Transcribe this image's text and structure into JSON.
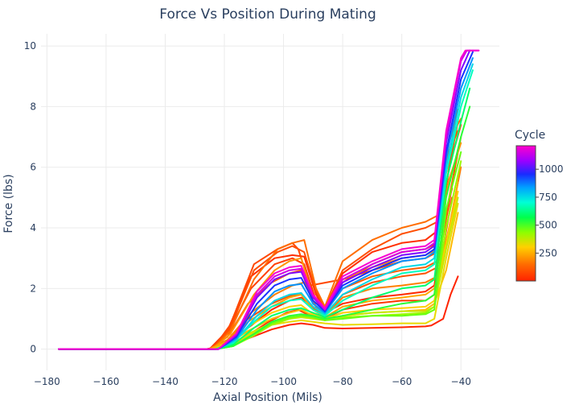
{
  "chart_data": {
    "type": "line",
    "title": "Force Vs Position During Mating",
    "xlabel": "Axial Position (Mils)",
    "ylabel": "Force (lbs)",
    "xlim": [
      -182,
      -27
    ],
    "ylim": [
      -0.7,
      10.4
    ],
    "xticks": [
      -180,
      -160,
      -140,
      -120,
      -100,
      -80,
      -60,
      -40
    ],
    "xtick_labels": [
      "−180",
      "−160",
      "−140",
      "−120",
      "−100",
      "−80",
      "−60",
      "−40"
    ],
    "yticks": [
      0,
      2,
      4,
      6,
      8,
      10
    ],
    "ytick_labels": [
      "0",
      "2",
      "4",
      "6",
      "8",
      "10"
    ],
    "grid": true,
    "legend": {
      "title": "Cycle",
      "placement": "right",
      "ticks": [
        250,
        500,
        750,
        1000
      ],
      "range": [
        1,
        1210
      ],
      "colorscale": [
        [
          0.0,
          "#ff2200"
        ],
        [
          0.12,
          "#ff6a00"
        ],
        [
          0.25,
          "#ffd000"
        ],
        [
          0.36,
          "#8cff00"
        ],
        [
          0.47,
          "#00ff4c"
        ],
        [
          0.58,
          "#00ffd5"
        ],
        [
          0.69,
          "#00a2ff"
        ],
        [
          0.79,
          "#1a2bff"
        ],
        [
          0.89,
          "#9d00ff"
        ],
        [
          1.0,
          "#ff00cc"
        ]
      ]
    },
    "series": [
      {
        "cycle": 5,
        "x": [
          -176,
          -126,
          -120,
          -112,
          -104,
          -98,
          -94,
          -90,
          -86,
          -80,
          -70,
          -60,
          -52,
          -50,
          -46,
          -43.5,
          -41
        ],
        "y": [
          0,
          0,
          0.1,
          0.35,
          0.65,
          0.8,
          0.85,
          0.8,
          0.7,
          0.68,
          0.7,
          0.72,
          0.75,
          0.78,
          1.0,
          1.8,
          2.4
        ]
      },
      {
        "cycle": 30,
        "x": [
          -176,
          -125,
          -119,
          -111,
          -103,
          -97,
          -93,
          -89,
          -86,
          -80,
          -70,
          -60,
          -52,
          -48,
          -44,
          -41
        ],
        "y": [
          0,
          0,
          0.6,
          2.4,
          3.0,
          3.1,
          3.05,
          1.8,
          1.3,
          2.5,
          3.2,
          3.5,
          3.6,
          3.9,
          6.8,
          7.9
        ]
      },
      {
        "cycle": 60,
        "x": [
          -176,
          -125,
          -119,
          -111,
          -103,
          -97,
          -93,
          -89,
          -86,
          -80,
          -70,
          -60,
          -52,
          -48,
          -44,
          -41
        ],
        "y": [
          0,
          0,
          0.5,
          2.0,
          2.8,
          3.0,
          2.8,
          1.6,
          1.25,
          2.2,
          2.8,
          3.2,
          3.3,
          3.5,
          6.0,
          7.5
        ]
      },
      {
        "cycle": 90,
        "x": [
          -176,
          -124,
          -118,
          -110,
          -102,
          -97,
          -93,
          -89,
          -86,
          -80,
          -70,
          -60,
          -52,
          -48,
          -44,
          -41
        ],
        "y": [
          0,
          0,
          0.7,
          2.6,
          3.2,
          3.4,
          3.2,
          1.9,
          1.35,
          2.6,
          3.3,
          3.8,
          4.0,
          4.2,
          6.5,
          7.2
        ]
      },
      {
        "cycle": 120,
        "x": [
          -176,
          -125,
          -119,
          -112,
          -104,
          -98,
          -94,
          -90,
          -86,
          -80,
          -70,
          -60,
          -52,
          -48,
          -44,
          -40
        ],
        "y": [
          0,
          0,
          0.4,
          1.5,
          2.2,
          2.5,
          2.6,
          1.5,
          1.2,
          2.0,
          2.4,
          2.6,
          2.7,
          2.9,
          5.0,
          7.0
        ]
      },
      {
        "cycle": 150,
        "x": [
          -176,
          -124,
          -118,
          -110,
          -102,
          -97,
          -93,
          -89,
          -86,
          -80,
          -70,
          -60,
          -52,
          -48,
          -44,
          -40
        ],
        "y": [
          0,
          0,
          0.6,
          2.3,
          3.3,
          3.5,
          3.6,
          2.0,
          1.4,
          2.9,
          3.6,
          4.0,
          4.2,
          4.4,
          6.9,
          7.6
        ]
      },
      {
        "cycle": 180,
        "x": [
          -176,
          -125,
          -119,
          -111,
          -103,
          -97,
          -93,
          -89,
          -86,
          -80,
          -70,
          -60,
          -52,
          -48,
          -44,
          -40
        ],
        "y": [
          0,
          0,
          0.3,
          1.2,
          1.8,
          2.1,
          2.2,
          1.4,
          1.1,
          1.7,
          2.0,
          2.1,
          2.2,
          2.4,
          4.0,
          6.0
        ]
      },
      {
        "cycle": 210,
        "x": [
          -176,
          -124,
          -118,
          -110,
          -103,
          -98,
          -94,
          -90,
          -86,
          -80,
          -70,
          -60,
          -52,
          -48,
          -44,
          -40
        ],
        "y": [
          0,
          0,
          0.5,
          1.8,
          2.6,
          2.9,
          3.0,
          1.7,
          1.3,
          2.3,
          2.7,
          3.0,
          3.1,
          3.3,
          5.6,
          6.8
        ]
      },
      {
        "cycle": 240,
        "x": [
          -176,
          -125,
          -119,
          -112,
          -104,
          -98,
          -94,
          -90,
          -86,
          -80,
          -70,
          -60,
          -52,
          -49,
          -45,
          -41
        ],
        "y": [
          0,
          0,
          0.25,
          0.9,
          1.4,
          1.7,
          1.8,
          1.3,
          1.05,
          1.4,
          1.6,
          1.7,
          1.8,
          2.0,
          3.5,
          5.5
        ]
      },
      {
        "cycle": 270,
        "x": [
          -176,
          -125,
          -119,
          -112,
          -104,
          -98,
          -94,
          -90,
          -86,
          -80,
          -70,
          -60,
          -52,
          -49,
          -45,
          -41
        ],
        "y": [
          0,
          0,
          0.15,
          0.6,
          1.0,
          1.2,
          1.3,
          1.1,
          0.95,
          1.1,
          1.2,
          1.25,
          1.3,
          1.5,
          2.6,
          4.5
        ]
      },
      {
        "cycle": 300,
        "x": [
          -176,
          -124,
          -118,
          -111,
          -104,
          -98,
          -94,
          -90,
          -86,
          -80,
          -70,
          -60,
          -52,
          -49,
          -45,
          -41
        ],
        "y": [
          0,
          0,
          0.2,
          0.8,
          1.2,
          1.4,
          1.45,
          1.15,
          1.0,
          1.2,
          1.3,
          1.35,
          1.4,
          1.6,
          3.5,
          5.2
        ]
      },
      {
        "cycle": 330,
        "x": [
          -176,
          -124,
          -118,
          -111,
          -104,
          -98,
          -94,
          -90,
          -86,
          -80,
          -70,
          -60,
          -52,
          -49,
          -45,
          -41
        ],
        "y": [
          0,
          0,
          0.1,
          0.5,
          0.8,
          0.9,
          0.95,
          0.9,
          0.85,
          0.8,
          0.82,
          0.85,
          0.85,
          1.0,
          3.0,
          4.8
        ]
      },
      {
        "cycle": 370,
        "x": [
          -176,
          -124,
          -118,
          -111,
          -104,
          -98,
          -94,
          -90,
          -86,
          -80,
          -70,
          -60,
          -52,
          -49,
          -45,
          -41
        ],
        "y": [
          0,
          0,
          0.15,
          0.55,
          0.85,
          1.0,
          1.05,
          1.0,
          0.95,
          1.1,
          1.2,
          1.25,
          1.25,
          1.4,
          3.3,
          5.0
        ]
      },
      {
        "cycle": 420,
        "x": [
          -176,
          -123,
          -117,
          -110,
          -104,
          -98,
          -94,
          -90,
          -86,
          -80,
          -70,
          -60,
          -52,
          -49,
          -45,
          -40
        ],
        "y": [
          0,
          0,
          0.1,
          0.45,
          0.8,
          1.0,
          1.1,
          1.05,
          1.0,
          1.05,
          1.1,
          1.15,
          1.2,
          1.4,
          4.0,
          6.2
        ]
      },
      {
        "cycle": 470,
        "x": [
          -176,
          -123,
          -117,
          -110,
          -104,
          -98,
          -94,
          -90,
          -86,
          -80,
          -70,
          -60,
          -52,
          -49,
          -45,
          -40
        ],
        "y": [
          0,
          0,
          0.1,
          0.5,
          0.85,
          1.05,
          1.1,
          1.05,
          0.95,
          1.0,
          1.1,
          1.1,
          1.15,
          1.3,
          4.6,
          6.5
        ]
      },
      {
        "cycle": 530,
        "x": [
          -176,
          -123,
          -117,
          -110,
          -104,
          -98,
          -94,
          -90,
          -86,
          -80,
          -70,
          -60,
          -52,
          -49,
          -45,
          -40,
          -37
        ],
        "y": [
          0,
          0,
          0.1,
          0.5,
          0.9,
          1.1,
          1.15,
          1.1,
          1.0,
          1.1,
          1.3,
          1.5,
          1.6,
          1.8,
          5.0,
          7.0,
          8.0
        ]
      },
      {
        "cycle": 600,
        "x": [
          -176,
          -123,
          -117,
          -110,
          -104,
          -98,
          -94,
          -90,
          -86,
          -80,
          -70,
          -60,
          -52,
          -49,
          -45,
          -40,
          -37
        ],
        "y": [
          0,
          0,
          0.15,
          0.7,
          1.1,
          1.3,
          1.35,
          1.2,
          1.05,
          1.3,
          1.7,
          2.0,
          2.1,
          2.3,
          5.5,
          7.5,
          8.6
        ]
      },
      {
        "cycle": 680,
        "x": [
          -176,
          -123,
          -117,
          -110,
          -104,
          -98,
          -94,
          -90,
          -86,
          -80,
          -70,
          -60,
          -52,
          -49,
          -45,
          -40,
          -36
        ],
        "y": [
          0,
          0,
          0.2,
          0.9,
          1.4,
          1.6,
          1.65,
          1.3,
          1.1,
          1.6,
          2.1,
          2.5,
          2.6,
          2.8,
          5.8,
          8.0,
          9.2
        ]
      },
      {
        "cycle": 760,
        "x": [
          -176,
          -122,
          -116,
          -109,
          -103,
          -98,
          -94,
          -90,
          -86,
          -80,
          -70,
          -60,
          -52,
          -49,
          -45,
          -40,
          -36
        ],
        "y": [
          0,
          0,
          0.3,
          1.1,
          1.6,
          1.8,
          1.85,
          1.4,
          1.15,
          1.8,
          2.3,
          2.7,
          2.8,
          3.0,
          6.0,
          8.3,
          9.4
        ]
      },
      {
        "cycle": 850,
        "x": [
          -176,
          -122,
          -116,
          -109,
          -103,
          -98,
          -94,
          -90,
          -86,
          -80,
          -70,
          -60,
          -52,
          -49,
          -45,
          -40,
          -36
        ],
        "y": [
          0,
          0,
          0.35,
          1.3,
          1.9,
          2.1,
          2.15,
          1.5,
          1.2,
          2.0,
          2.5,
          2.9,
          3.0,
          3.2,
          6.3,
          8.6,
          9.6
        ]
      },
      {
        "cycle": 950,
        "x": [
          -176,
          -122,
          -116,
          -109,
          -103,
          -98,
          -94,
          -90,
          -86,
          -80,
          -70,
          -60,
          -52,
          -49,
          -45,
          -40,
          -36
        ],
        "y": [
          0,
          0,
          0.4,
          1.5,
          2.1,
          2.3,
          2.35,
          1.6,
          1.25,
          2.1,
          2.6,
          3.0,
          3.1,
          3.3,
          6.5,
          8.9,
          9.8
        ]
      },
      {
        "cycle": 1050,
        "x": [
          -176,
          -122,
          -116,
          -109,
          -103,
          -98,
          -94,
          -90,
          -86,
          -80,
          -70,
          -60,
          -52,
          -49,
          -45,
          -40,
          -37
        ],
        "y": [
          0,
          0,
          0.45,
          1.7,
          2.3,
          2.5,
          2.55,
          1.7,
          1.3,
          2.2,
          2.7,
          3.1,
          3.2,
          3.4,
          6.8,
          9.2,
          9.85
        ]
      },
      {
        "cycle": 1150,
        "x": [
          -176,
          -122,
          -116,
          -109,
          -103,
          -98,
          -94,
          -90,
          -86,
          -80,
          -70,
          -60,
          -52,
          -49,
          -45,
          -40,
          -38,
          -34
        ],
        "y": [
          0,
          0,
          0.5,
          1.8,
          2.4,
          2.6,
          2.65,
          1.75,
          1.3,
          2.3,
          2.8,
          3.2,
          3.3,
          3.5,
          7.0,
          9.5,
          9.85,
          9.85
        ]
      },
      {
        "cycle": 1200,
        "x": [
          -176,
          -122,
          -116,
          -109,
          -103,
          -98,
          -94,
          -90,
          -86,
          -80,
          -70,
          -60,
          -52,
          -49,
          -45,
          -40,
          -38.5,
          -34
        ],
        "y": [
          0,
          0,
          0.5,
          1.9,
          2.5,
          2.7,
          2.75,
          1.8,
          1.35,
          2.4,
          2.9,
          3.3,
          3.4,
          3.6,
          7.2,
          9.6,
          9.85,
          9.85
        ]
      },
      {
        "cycle": 20,
        "x": [
          -176,
          -126,
          -121,
          -112,
          -104,
          -98,
          -94,
          -90,
          -86,
          -80,
          -70,
          -60,
          -52,
          -49,
          -45,
          -43
        ],
        "y": [
          0,
          0,
          0.1,
          0.7,
          1.3,
          1.6,
          1.7,
          1.4,
          1.2,
          1.5,
          1.7,
          1.8,
          1.9,
          2.1,
          4.6,
          5.3
        ]
      },
      {
        "cycle": 45,
        "x": [
          -176,
          -126,
          -121,
          -113,
          -105,
          -99,
          -95,
          -91,
          -86,
          -80,
          -70,
          -60,
          -52,
          -49,
          -45,
          -43
        ],
        "y": [
          0,
          0,
          0.05,
          0.4,
          0.9,
          1.2,
          1.3,
          1.1,
          1.0,
          1.3,
          1.5,
          1.6,
          1.6,
          1.8,
          3.9,
          5.0
        ]
      },
      {
        "cycle": 75,
        "x": [
          -176,
          -124,
          -118,
          -110,
          -102,
          -97,
          -95,
          -91,
          -80,
          -70,
          -60,
          -52,
          -48,
          -44,
          -40
        ],
        "y": [
          0,
          0,
          0.8,
          2.8,
          3.3,
          3.5,
          3.3,
          2.1,
          2.3,
          2.6,
          2.9,
          3.0,
          3.2,
          6.0,
          7.4
        ]
      },
      {
        "cycle": 100,
        "x": [
          -176,
          -125,
          -119,
          -112,
          -104,
          -98,
          -94,
          -90,
          -86,
          -80,
          -70,
          -60,
          -52,
          -48,
          -44,
          -41
        ],
        "y": [
          0,
          0,
          0.3,
          1.0,
          1.5,
          1.75,
          1.85,
          1.35,
          1.1,
          1.8,
          2.2,
          2.4,
          2.5,
          2.7,
          4.8,
          6.6
        ]
      }
    ]
  }
}
